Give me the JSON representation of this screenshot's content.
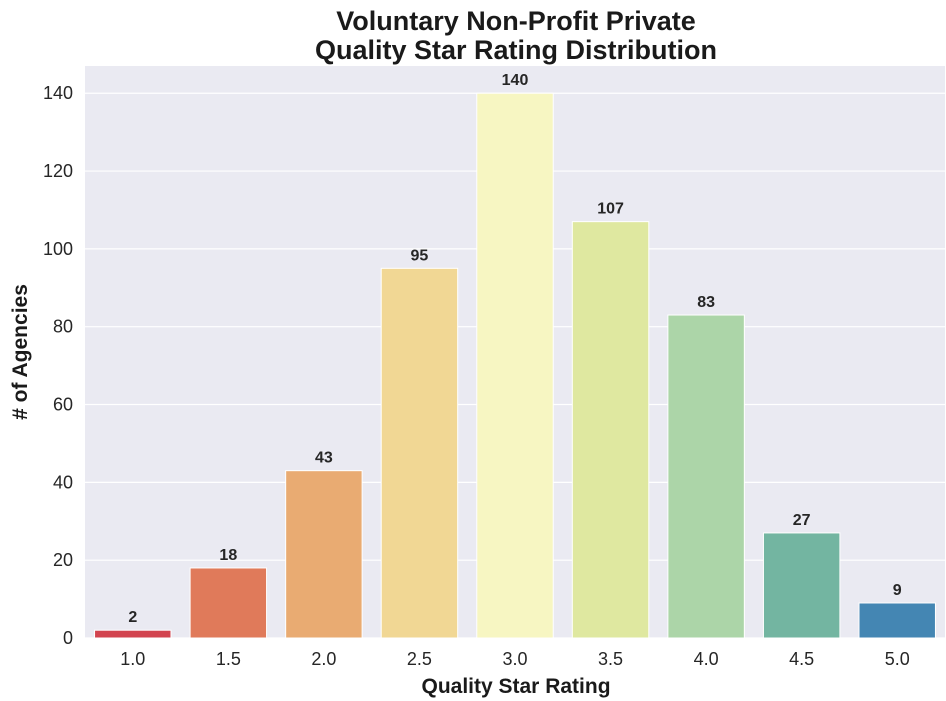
{
  "chart_data": {
    "type": "bar",
    "title": [
      "Voluntary Non-Profit Private",
      "Quality Star Rating Distribution"
    ],
    "xlabel": "Quality Star Rating",
    "ylabel": "# of Agencies",
    "categories": [
      "1.0",
      "1.5",
      "2.0",
      "2.5",
      "3.0",
      "3.5",
      "4.0",
      "4.5",
      "5.0"
    ],
    "values": [
      2,
      18,
      43,
      95,
      140,
      107,
      83,
      27,
      9
    ],
    "data_labels": [
      "2",
      "18",
      "43",
      "95",
      "140",
      "107",
      "83",
      "27",
      "9"
    ],
    "colors": [
      "#d2444f",
      "#e07a5a",
      "#e9ab72",
      "#f1d794",
      "#f7f6c2",
      "#dfe8a0",
      "#acd5a8",
      "#73b5a1",
      "#4486b3"
    ],
    "ylim": [
      0,
      147
    ],
    "yticks": [
      0,
      20,
      40,
      60,
      80,
      100,
      120,
      140
    ],
    "ytick_labels": [
      "0",
      "20",
      "40",
      "60",
      "80",
      "100",
      "120",
      "140"
    ],
    "grid": true,
    "plot_background": "#eaeaf2",
    "grid_color": "#ffffff"
  }
}
